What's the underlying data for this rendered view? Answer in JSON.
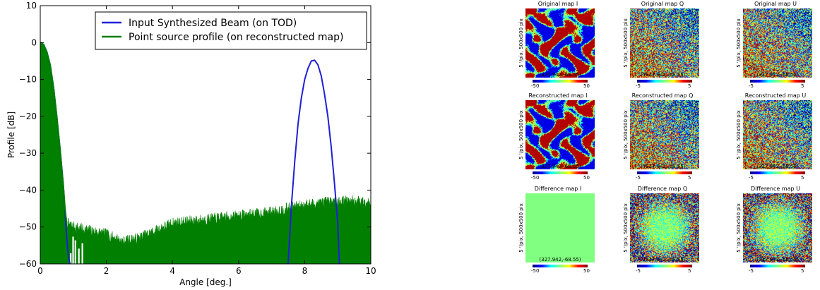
{
  "chart_data": [
    {
      "type": "line",
      "title": "",
      "xlabel": "Angle [deg.]",
      "ylabel": "Profile [dB]",
      "xlim": [
        0,
        10
      ],
      "ylim": [
        -60,
        10
      ],
      "xticks": [
        "0",
        "2",
        "4",
        "6",
        "8",
        "10"
      ],
      "yticks": [
        "10",
        "0",
        "−10",
        "−20",
        "−30",
        "−40",
        "−50",
        "−60"
      ],
      "grid": false,
      "legend_position": "top-right",
      "series": [
        {
          "name": "Input Synthesized Beam (on TOD)",
          "color": "#1f1fd6",
          "points": [
            [
              0,
              0
            ],
            [
              0.1,
              -0.5
            ],
            [
              0.2,
              -2.5
            ],
            [
              0.3,
              -6
            ],
            [
              0.4,
              -12
            ],
            [
              0.5,
              -20
            ],
            [
              0.6,
              -29
            ],
            [
              0.7,
              -39
            ],
            [
              0.75,
              -46
            ],
            [
              0.8,
              -53
            ],
            [
              0.85,
              -58
            ],
            [
              0.9,
              -60
            ],
            [
              7.5,
              -60
            ],
            [
              7.6,
              -44
            ],
            [
              7.7,
              -32
            ],
            [
              7.8,
              -22
            ],
            [
              7.9,
              -15
            ],
            [
              8.0,
              -10
            ],
            [
              8.1,
              -7
            ],
            [
              8.2,
              -5
            ],
            [
              8.3,
              -4.8
            ],
            [
              8.4,
              -6
            ],
            [
              8.5,
              -9
            ],
            [
              8.6,
              -14
            ],
            [
              8.7,
              -20
            ],
            [
              8.8,
              -28
            ],
            [
              8.9,
              -38
            ],
            [
              9.0,
              -49
            ],
            [
              9.05,
              -60
            ]
          ]
        },
        {
          "name": "Point source profile (on reconstructed map)",
          "color": "#007f00",
          "base": [
            [
              0,
              0
            ],
            [
              0.1,
              -0.5
            ],
            [
              0.2,
              -2.6
            ],
            [
              0.3,
              -6
            ],
            [
              0.4,
              -12
            ],
            [
              0.5,
              -20
            ],
            [
              0.6,
              -29
            ],
            [
              0.7,
              -39
            ],
            [
              0.75,
              -45
            ],
            [
              0.8,
              -49
            ],
            [
              1.0,
              -50
            ],
            [
              1.5,
              -51
            ],
            [
              2.0,
              -52
            ],
            [
              2.5,
              -54
            ],
            [
              3.0,
              -53
            ],
            [
              3.5,
              -51
            ],
            [
              4.0,
              -49
            ],
            [
              5.0,
              -48
            ],
            [
              6.0,
              -47
            ],
            [
              7.0,
              -46
            ],
            [
              8.0,
              -44
            ],
            [
              9.0,
              -43
            ],
            [
              10.0,
              -43
            ]
          ],
          "floor": -60
        }
      ]
    },
    {
      "type": "heatmap",
      "title": "",
      "panels": [
        {
          "title": "Original map I",
          "coords": "(327.942,-68.55)",
          "ylabel": "5 '/pix,  500x500 pix",
          "cbar_min": "-50",
          "cbar_max": "50",
          "style": "blobs"
        },
        {
          "title": "Original map Q",
          "coords": "(327.942,-68.55)",
          "ylabel": "5 '/pix,  500x500 pix",
          "cbar_min": "-5",
          "cbar_max": "5",
          "style": "noise"
        },
        {
          "title": "Original map U",
          "coords": "(327.942,-68.55)",
          "ylabel": "5 '/pix,  500x500 pix",
          "cbar_min": "-5",
          "cbar_max": "5",
          "style": "noise"
        },
        {
          "title": "Reconstructed map I",
          "coords": "(327.942,-68.55)",
          "ylabel": "5 '/pix,  500x500 pix",
          "cbar_min": "-50",
          "cbar_max": "50",
          "style": "blobs"
        },
        {
          "title": "Reconstructed map Q",
          "coords": "(327.942,-68.55)",
          "ylabel": "5 '/pix,  500x500 pix",
          "cbar_min": "-5",
          "cbar_max": "5",
          "style": "noise"
        },
        {
          "title": "Reconstructed map U",
          "coords": "(327.942,-68.55)",
          "ylabel": "5 '/pix,  500x500 pix",
          "cbar_min": "-5",
          "cbar_max": "5",
          "style": "noise"
        },
        {
          "title": "Difference map I",
          "coords": "(327.942,-68.55)",
          "ylabel": "5 '/pix,  500x500 pix",
          "cbar_min": "-50",
          "cbar_max": "50",
          "style": "flat"
        },
        {
          "title": "Difference map Q",
          "coords": "(327.942,-68.55)",
          "ylabel": "5 '/pix,  500x500 pix",
          "cbar_min": "-5",
          "cbar_max": "5",
          "style": "ring"
        },
        {
          "title": "Difference map U",
          "coords": "(327.942,-68.55)",
          "ylabel": "5 '/pix,  500x500 pix",
          "cbar_min": "-5",
          "cbar_max": "5",
          "style": "ring"
        }
      ]
    }
  ]
}
